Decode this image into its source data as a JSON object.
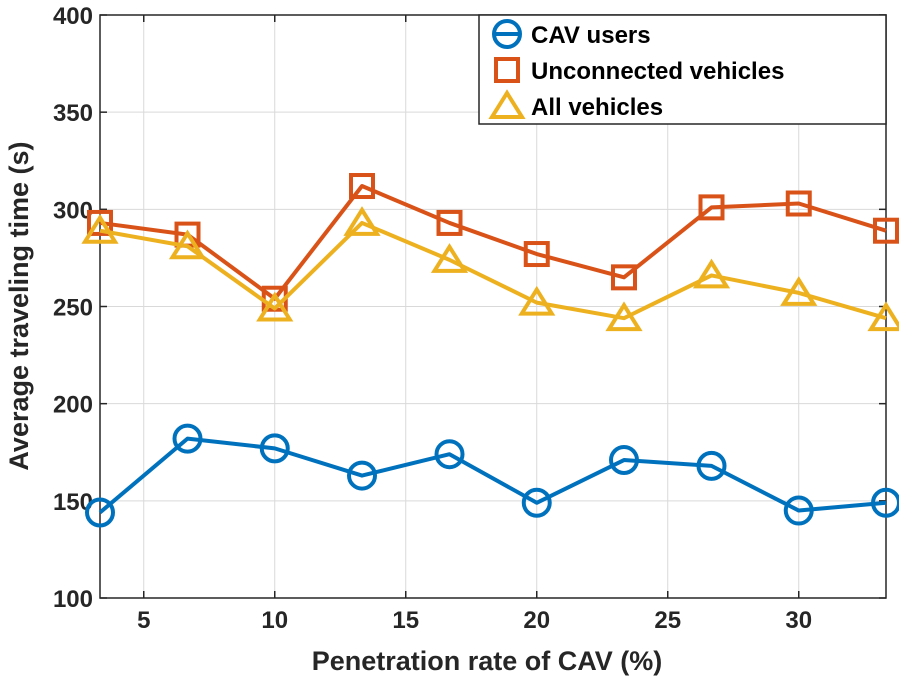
{
  "chart_data": {
    "type": "line",
    "title": "",
    "xlabel": "Penetration rate of CAV (%)",
    "ylabel": "Average traveling time (s)",
    "xlim": [
      3.33,
      33.33
    ],
    "ylim": [
      100,
      400
    ],
    "xticks": [
      5,
      10,
      15,
      20,
      25,
      30
    ],
    "yticks": [
      100,
      150,
      200,
      250,
      300,
      350,
      400
    ],
    "grid": true,
    "legend_position": "top-right",
    "x": [
      3.33,
      6.67,
      10,
      13.33,
      16.67,
      20,
      23.33,
      26.67,
      30,
      33.33
    ],
    "series": [
      {
        "name": "CAV users",
        "marker": "circle",
        "color": "#0072BD",
        "values": [
          144,
          182,
          177,
          163,
          174,
          149,
          171,
          168,
          145,
          149
        ]
      },
      {
        "name": "Unconnected vehicles",
        "marker": "square",
        "color": "#D95319",
        "values": [
          293,
          287,
          254,
          312,
          293,
          277,
          265,
          301,
          303,
          289
        ]
      },
      {
        "name": "All vehicles",
        "marker": "triangle",
        "color": "#EDB120",
        "values": [
          289,
          281,
          249,
          293,
          274,
          252,
          244,
          266,
          257,
          244
        ]
      }
    ]
  }
}
